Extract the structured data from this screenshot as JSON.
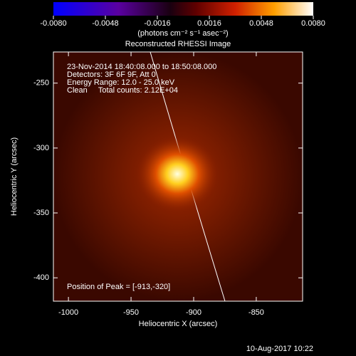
{
  "chart_data": {
    "type": "image",
    "title": "Reconstructed RHESSI Image",
    "xlabel": "Heliocentric X (arcsec)",
    "ylabel": "Heliocentric Y (arcsec)",
    "xlim": [
      -1012,
      -813
    ],
    "ylim": [
      -418,
      -226
    ],
    "xticks": [
      -1000,
      -950,
      -900,
      -850
    ],
    "yticks": [
      -400,
      -350,
      -300,
      -250
    ],
    "annotations": [
      "23-Nov-2014 18:40:08.000 to 18:50:08.000",
      "Detectors: 3F 6F 9F, Att 0",
      "Energy Range: 12.0 - 25.0 keV",
      "Clean     Total counts: 2.12E+04"
    ],
    "peak": {
      "label": "Position of Peak = [-913,-320]",
      "x": -913,
      "y": -320
    },
    "colorbar": {
      "lim": [
        -0.008,
        0.008
      ],
      "ticks": [
        {
          "value": -0.008,
          "label": "-0.0080"
        },
        {
          "value": -0.0048,
          "label": "-0.0048"
        },
        {
          "value": -0.0016,
          "label": "-0.0016"
        },
        {
          "value": 0.0016,
          "label": "0.0016"
        },
        {
          "value": 0.0048,
          "label": "0.0048"
        },
        {
          "value": 0.008,
          "label": "0.0080"
        }
      ],
      "label": "(photons cm⁻² s⁻¹ asec⁻²)"
    },
    "footer": "10-Aug-2017 10:22"
  }
}
